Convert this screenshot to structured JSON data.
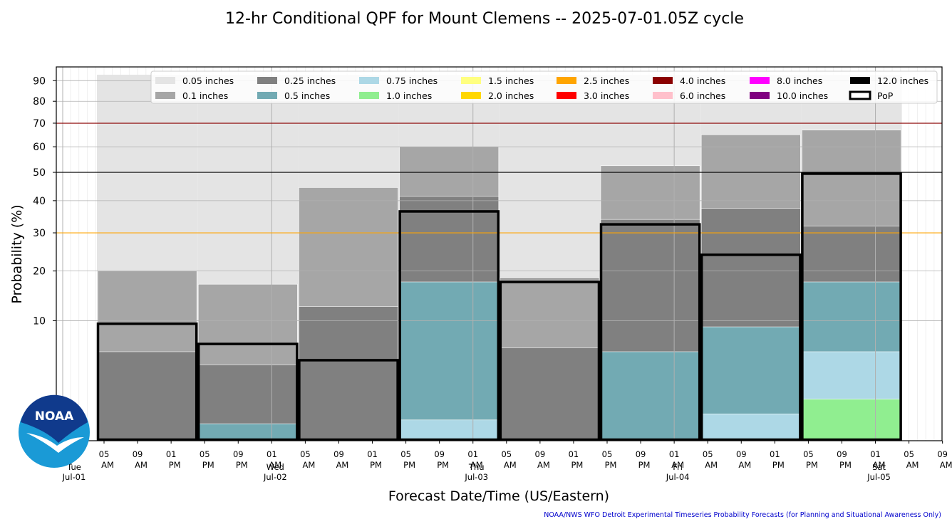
{
  "chart_data": {
    "type": "bar",
    "title": "12-hr Conditional QPF for Mount Clemens -- 2025-07-01.05Z cycle",
    "xlabel": "Forecast Date/Time (US/Eastern)",
    "ylabel": "Probability (%)",
    "y_scale": "sqrt",
    "ylim": [
      0,
      97
    ],
    "yticks": [
      10,
      20,
      30,
      40,
      50,
      60,
      70,
      80,
      90
    ],
    "grid": true,
    "legend_position": "top",
    "reference_lines": [
      {
        "value": 70,
        "color": "#8b0000"
      },
      {
        "value": 50,
        "color": "#000000"
      },
      {
        "value": 30,
        "color": "#ffa500"
      }
    ],
    "x_tick_labels": [
      "05 AM",
      "09 AM",
      "01 PM",
      "05 PM",
      "09 PM",
      "01 AM",
      "05 AM",
      "09 AM",
      "01 PM",
      "05 PM",
      "09 PM",
      "01 AM",
      "05 AM",
      "09 AM",
      "01 PM",
      "05 PM",
      "09 PM",
      "01 AM",
      "05 AM",
      "09 AM",
      "01 PM",
      "05 PM",
      "09 PM",
      "01 AM",
      "05 AM",
      "09 AM",
      "01 PM",
      "05 PM",
      "09 PM",
      "01 AM",
      "05 AM"
    ],
    "day_labels": [
      {
        "day": "Tue",
        "date": "Jul-01"
      },
      {
        "day": "Wed",
        "date": "Jul-02"
      },
      {
        "day": "Thu",
        "date": "Jul-03"
      },
      {
        "day": "Fri",
        "date": "Jul-04"
      },
      {
        "day": "Sat",
        "date": "Jul-05"
      }
    ],
    "periods": [
      "Jul-01 05 AM",
      "Jul-01 05 PM",
      "Jul-02 05 AM",
      "Jul-02 05 PM",
      "Jul-03 05 AM",
      "Jul-03 05 PM",
      "Jul-04 05 AM",
      "Jul-04 05 PM"
    ],
    "series": [
      {
        "name": "0.05 inches",
        "color": "#e4e4e4",
        "values": [
          93,
          93,
          93,
          93,
          93,
          93,
          93,
          93
        ]
      },
      {
        "name": "0.1 inches",
        "color": "#a6a6a6",
        "values": [
          20,
          17,
          44.5,
          60,
          18.5,
          52.5,
          65,
          67
        ]
      },
      {
        "name": "0.25 inches",
        "color": "#808080",
        "values": [
          5.5,
          4,
          12.5,
          41.5,
          6,
          34,
          37.5,
          32
        ]
      },
      {
        "name": "0.5 inches",
        "color": "#72aab3",
        "values": [
          0,
          0.2,
          0,
          17.5,
          0,
          5.5,
          9,
          17.5
        ]
      },
      {
        "name": "0.75 inches",
        "color": "#add8e6",
        "values": [
          0,
          0,
          0,
          0.3,
          0,
          0,
          0.5,
          5.5
        ]
      },
      {
        "name": "1.0 inches",
        "color": "#90ee90",
        "values": [
          0,
          0,
          0,
          0,
          0,
          0,
          0,
          1.2
        ]
      },
      {
        "name": "1.5 inches",
        "color": "#ffff80",
        "values": [
          0,
          0,
          0,
          0,
          0,
          0,
          0,
          0
        ]
      },
      {
        "name": "2.0 inches",
        "color": "#ffd700",
        "values": [
          0,
          0,
          0,
          0,
          0,
          0,
          0,
          0
        ]
      },
      {
        "name": "2.5 inches",
        "color": "#ffa500",
        "values": [
          0,
          0,
          0,
          0,
          0,
          0,
          0,
          0
        ]
      },
      {
        "name": "3.0 inches",
        "color": "#ff0000",
        "values": [
          0,
          0,
          0,
          0,
          0,
          0,
          0,
          0
        ]
      },
      {
        "name": "4.0 inches",
        "color": "#8b0000",
        "values": [
          0,
          0,
          0,
          0,
          0,
          0,
          0,
          0
        ]
      },
      {
        "name": "6.0 inches",
        "color": "#ffc0cb",
        "values": [
          0,
          0,
          0,
          0,
          0,
          0,
          0,
          0
        ]
      },
      {
        "name": "8.0 inches",
        "color": "#ff00ff",
        "values": [
          0,
          0,
          0,
          0,
          0,
          0,
          0,
          0
        ]
      },
      {
        "name": "10.0 inches",
        "color": "#800080",
        "values": [
          0,
          0,
          0,
          0,
          0,
          0,
          0,
          0
        ]
      },
      {
        "name": "12.0 inches",
        "color": "#000000",
        "values": [
          0,
          0,
          0,
          0,
          0,
          0,
          0,
          0
        ]
      }
    ],
    "pop": {
      "name": "PoP",
      "values": [
        9.5,
        6.5,
        4.5,
        36.5,
        17.5,
        32.5,
        24,
        49.5
      ]
    }
  },
  "credit": "NOAA/NWS WFO Detroit Experimental Timeseries Probability Forecasts (for Planning and Situational Awareness Only)",
  "logo": {
    "text": "NOAA"
  }
}
